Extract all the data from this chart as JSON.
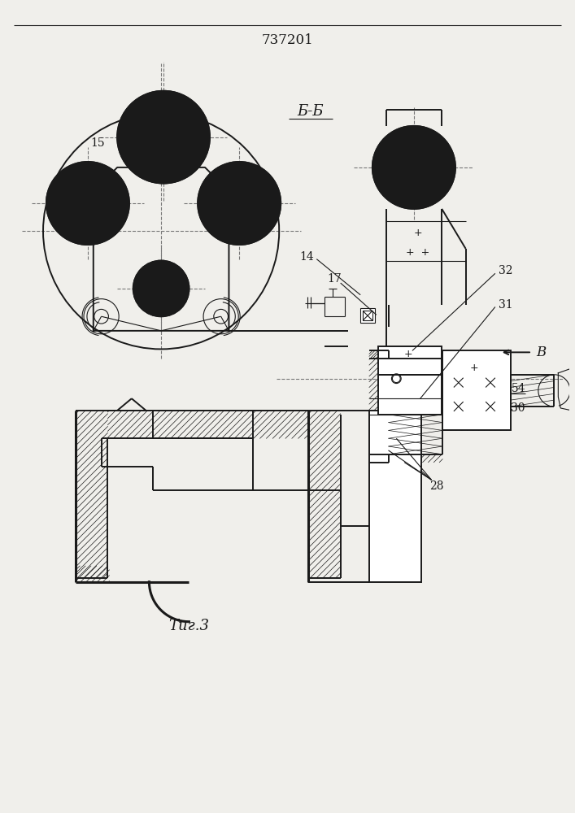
{
  "title": "737201",
  "fig_label": "Τиг.3",
  "section_label": "Б-Б",
  "bg_color": "#ffffff",
  "line_color": "#1a1a1a",
  "page_bg": "#f0efeb"
}
